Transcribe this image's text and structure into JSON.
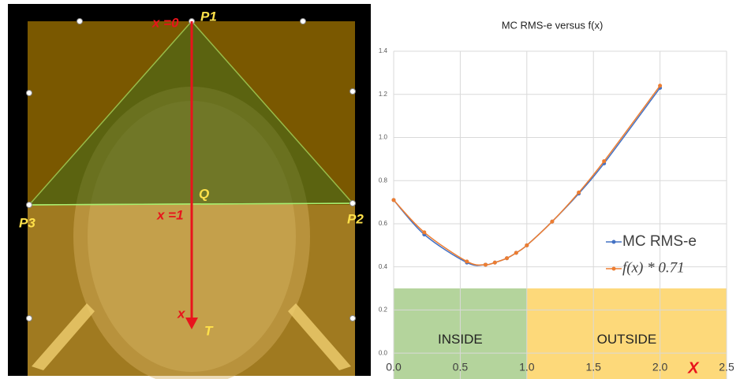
{
  "left_panel": {
    "labels": {
      "x0": "x =0",
      "p1": "P1",
      "q": "Q",
      "x1": "x =1",
      "p3": "P3",
      "p2": "P2",
      "x": "x",
      "t": "T"
    }
  },
  "chart_data": {
    "type": "line",
    "title": "MC RMS-e versus f(x)",
    "x_label": "X",
    "x": [
      0,
      0.23,
      0.55,
      0.69,
      0.76,
      0.85,
      0.92,
      1.0,
      1.19,
      1.39,
      1.58,
      2.0
    ],
    "series": [
      {
        "name": "MC RMS-e",
        "color": "#4472c4",
        "values": [
          0.71,
          0.55,
          0.42,
          0.41,
          0.42,
          0.44,
          0.465,
          0.5,
          0.61,
          0.74,
          0.88,
          1.23
        ]
      },
      {
        "name": "f(x) * 0.71",
        "color": "#ed7d31",
        "values": [
          0.71,
          0.56,
          0.425,
          0.41,
          0.42,
          0.44,
          0.465,
          0.5,
          0.61,
          0.745,
          0.89,
          1.24
        ]
      }
    ],
    "xlim": [
      0,
      2.5
    ],
    "ylim": [
      -0.12,
      1.4
    ],
    "xticks": [
      {
        "value": 0,
        "label": "0.0"
      },
      {
        "value": 0.5,
        "label": "0.5"
      },
      {
        "value": 1,
        "label": "1.0"
      },
      {
        "value": 1.5,
        "label": "1.5"
      },
      {
        "value": 2,
        "label": "2.0"
      },
      {
        "value": 2.5,
        "label": "2.5"
      }
    ],
    "yticks": [
      {
        "value": 0,
        "label": "0.0"
      },
      {
        "value": 0.2,
        "label": "0.2"
      },
      {
        "value": 0.4,
        "label": "0.4"
      },
      {
        "value": 0.6,
        "label": "0.6"
      },
      {
        "value": 0.8,
        "label": "0.8"
      },
      {
        "value": 1,
        "label": "1.0"
      },
      {
        "value": 1.2,
        "label": "1.2"
      },
      {
        "value": 1.4,
        "label": "1.4"
      }
    ],
    "grid": true,
    "regions": [
      {
        "label": "INSIDE",
        "x": [
          0,
          1
        ],
        "y": [
          -0.12,
          0.3
        ],
        "color": "#b4d49c"
      },
      {
        "label": "OUTSIDE",
        "x": [
          1,
          2.5
        ],
        "y": [
          -0.12,
          0.3
        ],
        "color": "#fdd97a"
      }
    ]
  }
}
